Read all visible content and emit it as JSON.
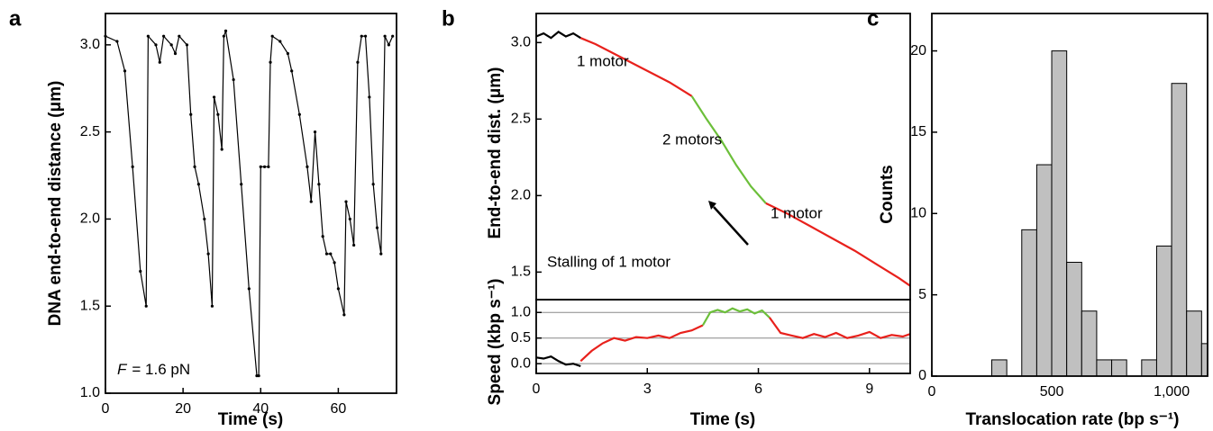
{
  "chart_data": [
    {
      "type": "line",
      "panel_label": "a",
      "x_label": "Time (s)",
      "y_label": "DNA end-to-end distance (μm)",
      "annotation": {
        "symbol": "F",
        "text": "= 1.6 pN"
      },
      "xlim": [
        0,
        75
      ],
      "xticks": [
        0,
        20,
        40,
        60
      ],
      "ylim": [
        1.0,
        3.18
      ],
      "yticks": [
        {
          "value": 1.0,
          "label": "1.0"
        },
        {
          "value": 1.5,
          "label": "1.5"
        },
        {
          "value": 2.0,
          "label": "2.0"
        },
        {
          "value": 2.5,
          "label": "2.5"
        },
        {
          "value": 3.0,
          "label": "3.0"
        }
      ],
      "series": [
        {
          "color": "#000000",
          "x": [
            0,
            3,
            5,
            7,
            9,
            10.5,
            11,
            13,
            14,
            15,
            17,
            18,
            19,
            21,
            22,
            23,
            24,
            25.5,
            26.5,
            27.5,
            28,
            29,
            30,
            30.5,
            31,
            33,
            35,
            37,
            39,
            39.5,
            40,
            41,
            42,
            42.5,
            43,
            45,
            47,
            48,
            50,
            52,
            53,
            54,
            55,
            56,
            57,
            58,
            59,
            60,
            61.5,
            62,
            63,
            64,
            65,
            66,
            67,
            68,
            69,
            70,
            71,
            72,
            73,
            74
          ],
          "values": [
            3.05,
            3.02,
            2.85,
            2.3,
            1.7,
            1.5,
            3.05,
            3.0,
            2.9,
            3.05,
            3.0,
            2.95,
            3.05,
            3.0,
            2.6,
            2.3,
            2.2,
            2.0,
            1.8,
            1.5,
            2.7,
            2.6,
            2.4,
            3.05,
            3.08,
            2.8,
            2.2,
            1.6,
            1.1,
            1.1,
            2.3,
            2.3,
            2.3,
            2.9,
            3.05,
            3.02,
            2.95,
            2.85,
            2.6,
            2.3,
            2.1,
            2.5,
            2.2,
            1.9,
            1.8,
            1.8,
            1.75,
            1.6,
            1.45,
            2.1,
            2.0,
            1.85,
            2.9,
            3.05,
            3.05,
            2.7,
            2.2,
            1.95,
            1.8,
            3.05,
            3.0,
            3.05
          ]
        }
      ]
    },
    {
      "type": "line",
      "panel_label": "b",
      "y_label": "End-to-end dist. (μm)",
      "annotations": [
        "1 motor",
        "2 motors",
        "1 motor",
        "Stalling of 1 motor"
      ],
      "xlim": [
        0,
        10.1
      ],
      "ylim": [
        1.32,
        3.19
      ],
      "yticks": [
        {
          "value": 1.5,
          "label": "1.5"
        },
        {
          "value": 2.0,
          "label": "2.0"
        },
        {
          "value": 2.5,
          "label": "2.5"
        },
        {
          "value": 3.0,
          "label": "3.0"
        }
      ],
      "series": [
        {
          "color": "#000000",
          "x": [
            0,
            0.2,
            0.4,
            0.6,
            0.8,
            1.0,
            1.2
          ],
          "values": [
            3.04,
            3.06,
            3.03,
            3.07,
            3.04,
            3.06,
            3.03
          ]
        },
        {
          "color": "#e8211c",
          "x": [
            1.2,
            1.6,
            2.0,
            2.4,
            2.8,
            3.2,
            3.6,
            4.0,
            4.2
          ],
          "values": [
            3.03,
            2.99,
            2.94,
            2.89,
            2.84,
            2.79,
            2.74,
            2.68,
            2.65
          ]
        },
        {
          "color": "#6cbf3a",
          "x": [
            4.2,
            4.6,
            5.0,
            5.4,
            5.8,
            6.2
          ],
          "values": [
            2.65,
            2.5,
            2.36,
            2.2,
            2.06,
            1.95
          ]
        },
        {
          "color": "#e8211c",
          "x": [
            6.2,
            6.8,
            7.4,
            8.0,
            8.6,
            9.2,
            9.8,
            10.1
          ],
          "values": [
            1.95,
            1.88,
            1.8,
            1.72,
            1.64,
            1.55,
            1.46,
            1.41
          ]
        }
      ]
    },
    {
      "type": "line",
      "x_label": "Time (s)",
      "y_label": "Speed (kbp s⁻¹)",
      "grid": true,
      "xlim": [
        0,
        10.1
      ],
      "xticks": [
        0,
        3,
        6,
        9
      ],
      "ylim": [
        -0.19,
        1.25
      ],
      "yticks": [
        {
          "value": 0.0,
          "label": "0.0"
        },
        {
          "value": 0.5,
          "label": "0.5"
        },
        {
          "value": 1.0,
          "label": "1.0"
        }
      ],
      "series": [
        {
          "color": "#000000",
          "x": [
            0,
            0.2,
            0.4,
            0.6,
            0.8,
            1.0,
            1.2
          ],
          "values": [
            0.12,
            0.1,
            0.14,
            0.05,
            -0.02,
            0.0,
            -0.05
          ]
        },
        {
          "color": "#e8211c",
          "x": [
            1.2,
            1.5,
            1.8,
            2.1,
            2.4,
            2.7,
            3.0,
            3.3,
            3.6,
            3.9,
            4.2,
            4.5
          ],
          "values": [
            0.05,
            0.25,
            0.4,
            0.5,
            0.45,
            0.52,
            0.5,
            0.55,
            0.5,
            0.6,
            0.65,
            0.75
          ]
        },
        {
          "color": "#6cbf3a",
          "x": [
            4.5,
            4.7,
            4.9,
            5.1,
            5.3,
            5.5,
            5.7,
            5.9,
            6.1,
            6.3
          ],
          "values": [
            0.75,
            1.0,
            1.05,
            1.0,
            1.08,
            1.02,
            1.06,
            0.98,
            1.04,
            0.9
          ]
        },
        {
          "color": "#e8211c",
          "x": [
            6.3,
            6.6,
            6.9,
            7.2,
            7.5,
            7.8,
            8.1,
            8.4,
            8.7,
            9.0,
            9.3,
            9.6,
            9.9,
            10.1
          ],
          "values": [
            0.9,
            0.6,
            0.55,
            0.5,
            0.58,
            0.52,
            0.6,
            0.5,
            0.55,
            0.62,
            0.5,
            0.56,
            0.53,
            0.58
          ]
        }
      ]
    },
    {
      "type": "histogram",
      "panel_label": "c",
      "x_label": "Translocation rate (bp s⁻¹)",
      "y_label": "Counts",
      "color": "#c0c0c0",
      "bins": [
        250,
        312.5,
        375,
        437.5,
        500,
        562.5,
        625,
        687.5,
        750,
        812.5,
        875,
        937.5,
        1000,
        1062.5,
        1125,
        1187.5
      ],
      "values": [
        1,
        0,
        9,
        13,
        20,
        7,
        4,
        1,
        1,
        0,
        1,
        8,
        18,
        4,
        2
      ],
      "xlim": [
        0,
        1150
      ],
      "xticks": [
        0,
        500,
        {
          "value": 1000,
          "label": "1,000"
        }
      ],
      "ylim": [
        0,
        22.3
      ],
      "yticks": [
        0,
        5,
        10,
        15,
        20
      ]
    }
  ]
}
